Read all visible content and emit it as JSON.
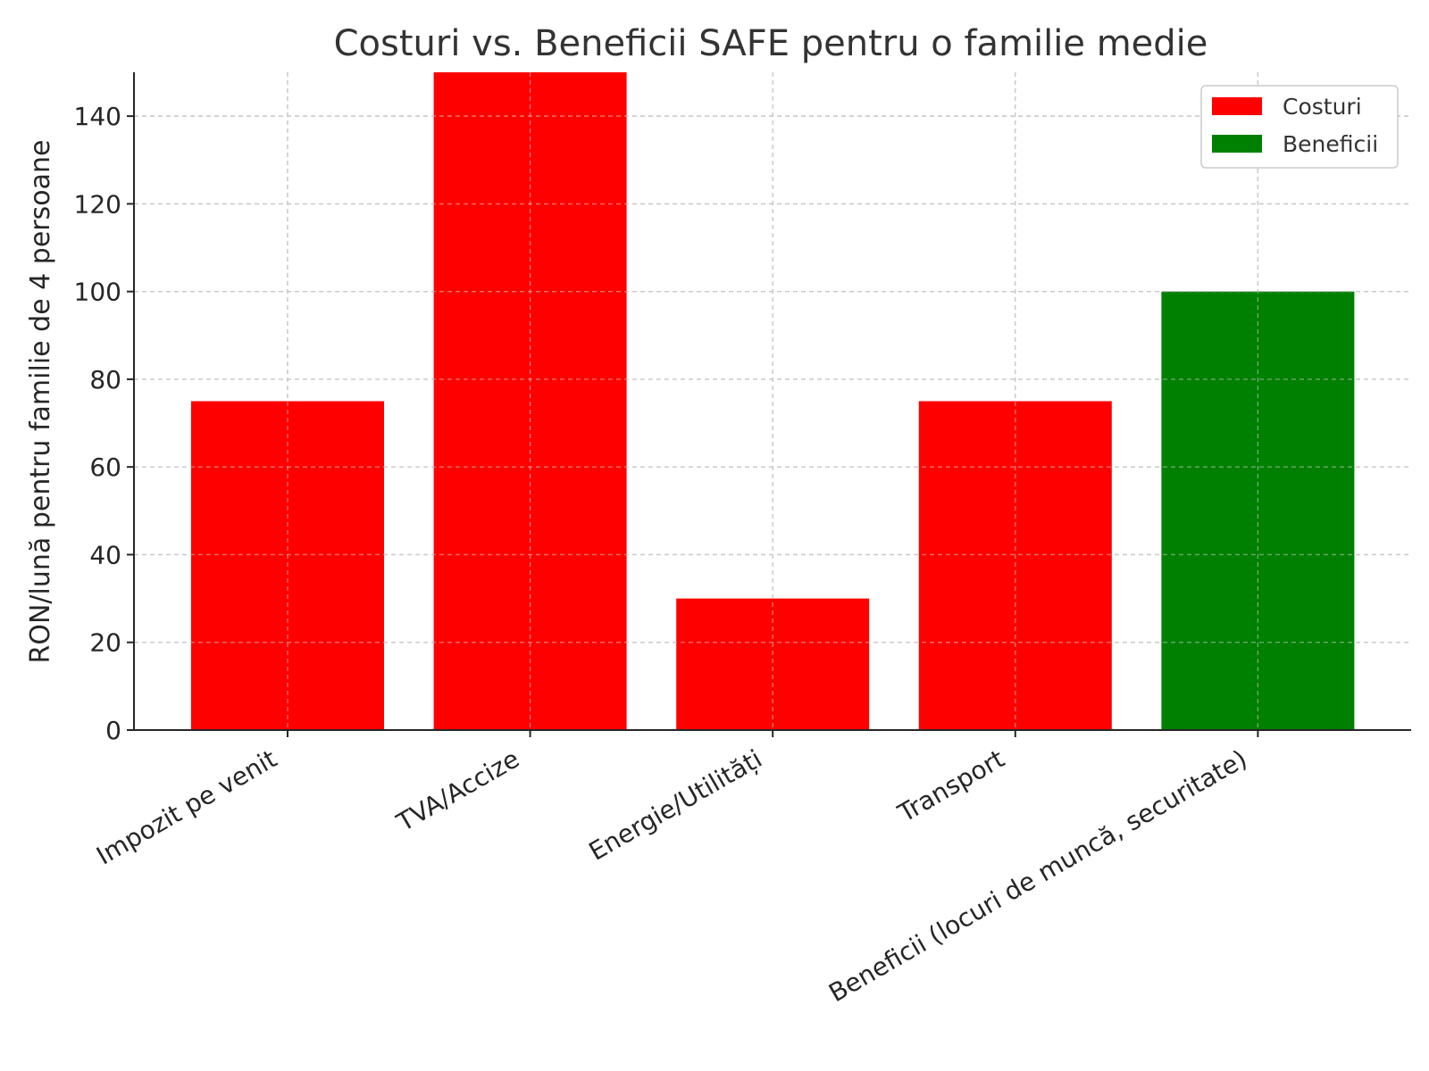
{
  "chart_data": {
    "type": "bar",
    "title": "Costuri vs. Beneficii SAFE pentru o familie medie",
    "xlabel": "",
    "ylabel": "RON/lună pentru familie de 4 persoane",
    "categories": [
      "Impozit pe venit",
      "TVA/Accize",
      "Energie/Utilități",
      "Transport",
      "Beneficii (locuri de muncă, securitate)"
    ],
    "values": [
      75,
      150,
      30,
      75,
      100
    ],
    "bar_groups": [
      "Costuri",
      "Costuri",
      "Costuri",
      "Costuri",
      "Beneficii"
    ],
    "ylim": [
      0,
      150
    ],
    "yticks": [
      0,
      20,
      40,
      60,
      80,
      100,
      120,
      140
    ],
    "grid": true,
    "legend": {
      "placement": "top-right",
      "entries": [
        {
          "label": "Costuri",
          "color": "#ff0000"
        },
        {
          "label": "Beneficii",
          "color": "#008000"
        }
      ]
    },
    "colors": {
      "costuri": "#ff0000",
      "beneficii": "#008000"
    }
  }
}
